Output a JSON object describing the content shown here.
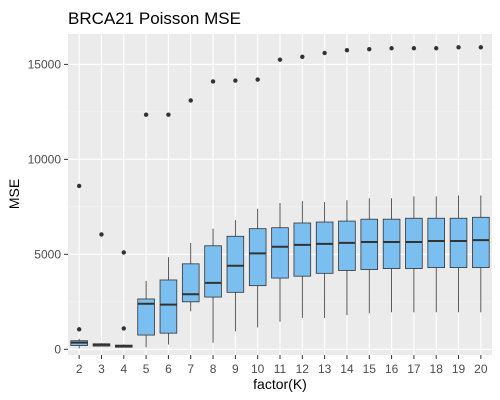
{
  "chart_data": {
    "type": "boxplot",
    "title": "BRCA21 Poisson MSE",
    "xlabel": "factor(K)",
    "ylabel": "MSE",
    "categories": [
      "2",
      "3",
      "4",
      "5",
      "6",
      "7",
      "8",
      "9",
      "10",
      "11",
      "12",
      "13",
      "14",
      "15",
      "16",
      "17",
      "18",
      "19",
      "20"
    ],
    "ylim": [
      -300,
      16600
    ],
    "yticks": [
      0,
      5000,
      10000,
      15000
    ],
    "ytick_labels": [
      "0",
      "5000",
      "10000",
      "15000"
    ],
    "grid": true,
    "legend": "none",
    "boxes": [
      {
        "category": "2",
        "lower": 50,
        "q1": 200,
        "median": 350,
        "q3": 450,
        "upper": 550,
        "outliers": [
          1050,
          8600
        ]
      },
      {
        "category": "3",
        "lower": 150,
        "q1": 170,
        "median": 240,
        "q3": 290,
        "upper": 320,
        "outliers": [
          6050
        ]
      },
      {
        "category": "4",
        "lower": 100,
        "q1": 110,
        "median": 170,
        "q3": 220,
        "upper": 260,
        "outliers": [
          1100,
          5100
        ]
      },
      {
        "category": "5",
        "lower": 100,
        "q1": 750,
        "median": 2400,
        "q3": 2650,
        "upper": 3600,
        "outliers": [
          12350
        ]
      },
      {
        "category": "6",
        "lower": 250,
        "q1": 850,
        "median": 2350,
        "q3": 3650,
        "upper": 4850,
        "outliers": [
          12350
        ]
      },
      {
        "category": "7",
        "lower": 2000,
        "q1": 2500,
        "median": 2900,
        "q3": 4500,
        "upper": 5600,
        "outliers": [
          13100
        ]
      },
      {
        "category": "8",
        "lower": 350,
        "q1": 2750,
        "median": 3500,
        "q3": 5450,
        "upper": 6350,
        "outliers": [
          14100
        ]
      },
      {
        "category": "9",
        "lower": 950,
        "q1": 3000,
        "median": 4400,
        "q3": 5950,
        "upper": 6800,
        "outliers": [
          14150
        ]
      },
      {
        "category": "10",
        "lower": 1150,
        "q1": 3350,
        "median": 5050,
        "q3": 6350,
        "upper": 7400,
        "outliers": [
          14200
        ]
      },
      {
        "category": "11",
        "lower": 1450,
        "q1": 3750,
        "median": 5400,
        "q3": 6400,
        "upper": 7700,
        "outliers": [
          15250
        ]
      },
      {
        "category": "12",
        "lower": 1650,
        "q1": 3850,
        "median": 5500,
        "q3": 6650,
        "upper": 7800,
        "outliers": [
          15400
        ]
      },
      {
        "category": "13",
        "lower": 1650,
        "q1": 4000,
        "median": 5550,
        "q3": 6700,
        "upper": 7750,
        "outliers": [
          15600
        ]
      },
      {
        "category": "14",
        "lower": 1800,
        "q1": 4150,
        "median": 5600,
        "q3": 6750,
        "upper": 7850,
        "outliers": [
          15750
        ]
      },
      {
        "category": "15",
        "lower": 1900,
        "q1": 4200,
        "median": 5650,
        "q3": 6850,
        "upper": 7950,
        "outliers": [
          15800
        ]
      },
      {
        "category": "16",
        "lower": 1950,
        "q1": 4250,
        "median": 5650,
        "q3": 6850,
        "upper": 7950,
        "outliers": [
          15850
        ]
      },
      {
        "category": "17",
        "lower": 1950,
        "q1": 4250,
        "median": 5650,
        "q3": 6900,
        "upper": 8050,
        "outliers": [
          15850
        ]
      },
      {
        "category": "18",
        "lower": 1950,
        "q1": 4300,
        "median": 5700,
        "q3": 6900,
        "upper": 8050,
        "outliers": [
          15850
        ]
      },
      {
        "category": "19",
        "lower": 1950,
        "q1": 4300,
        "median": 5700,
        "q3": 6900,
        "upper": 8100,
        "outliers": [
          15900
        ]
      },
      {
        "category": "20",
        "lower": 1950,
        "q1": 4300,
        "median": 5750,
        "q3": 6950,
        "upper": 8100,
        "outliers": [
          15900
        ]
      }
    ],
    "colors": {
      "panel_background": "#ebebeb",
      "grid_major": "#ffffff",
      "grid_minor": "#f5f5f5",
      "box_fill": "#7bbff0",
      "box_stroke": "#333333",
      "outlier": "#333333",
      "tick_label": "#4d4d4d"
    }
  }
}
